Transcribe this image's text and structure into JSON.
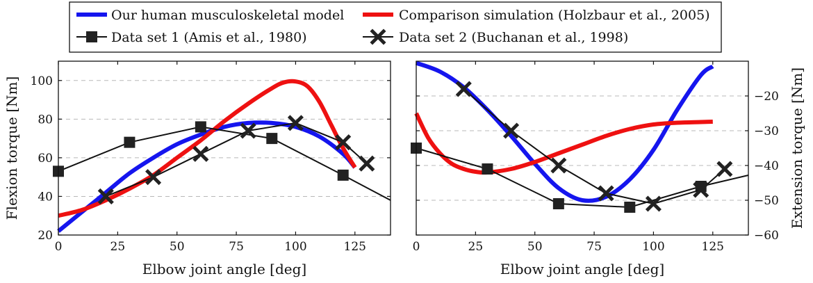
{
  "legend": [
    {
      "key": "model",
      "label": "Our human musculoskeletal model",
      "color": "#1515ee",
      "style": "thick-line"
    },
    {
      "key": "comparison",
      "label": "Comparison simulation (Holzbaur et al., 2005)",
      "color": "#ee1111",
      "style": "thick-line"
    },
    {
      "key": "data1",
      "label": "Data set 1 (Amis et al., 1980)",
      "color": "#111111",
      "style": "square"
    },
    {
      "key": "data2",
      "label": "Data set 2 (Buchanan et al., 1998)",
      "color": "#111111",
      "style": "cross"
    }
  ],
  "chart_data": [
    {
      "type": "line",
      "id": "flexion",
      "xlabel": "Elbow joint angle [deg]",
      "ylabel": "Flexion torque [Nm]",
      "xlim": [
        0,
        140
      ],
      "ylim": [
        20,
        110
      ],
      "xticks": [
        0,
        25,
        50,
        75,
        100,
        125
      ],
      "yticks": [
        20,
        40,
        60,
        80,
        100
      ],
      "grid_y": [
        40,
        60,
        80,
        100
      ],
      "y_axis_side": "left",
      "series": [
        {
          "name": "Our human musculoskeletal model",
          "kind": "curve",
          "x": [
            0,
            10,
            20,
            30,
            40,
            50,
            60,
            70,
            80,
            90,
            100,
            110,
            120,
            125
          ],
          "y": [
            22,
            32,
            42,
            52,
            60,
            67,
            72,
            76,
            78,
            78,
            76,
            71,
            62,
            55
          ]
        },
        {
          "name": "Comparison simulation (Holzbaur et al., 2005)",
          "kind": "curve",
          "x": [
            0,
            10,
            20,
            30,
            40,
            50,
            60,
            70,
            80,
            90,
            95,
            100,
            105,
            110,
            115,
            120,
            125
          ],
          "y": [
            30,
            33,
            38,
            44,
            51,
            60,
            69,
            79,
            88,
            96,
            99,
            99.5,
            97,
            89,
            77,
            65,
            55
          ]
        },
        {
          "name": "Data set 1 (Amis et al., 1980)",
          "kind": "markers-square",
          "x": [
            0,
            30,
            60,
            90,
            120,
            140
          ],
          "y": [
            53,
            68,
            76,
            70,
            51,
            38
          ],
          "marker_count": 5
        },
        {
          "name": "Data set 2 (Buchanan et al., 1998)",
          "kind": "markers-cross",
          "x": [
            20,
            40,
            60,
            80,
            100,
            120,
            130
          ],
          "y": [
            40,
            50,
            62,
            74,
            78,
            68,
            57
          ]
        }
      ]
    },
    {
      "type": "line",
      "id": "extension",
      "xlabel": "Elbow joint angle [deg]",
      "ylabel": "Extension torque [Nm]",
      "xlim": [
        0,
        140
      ],
      "ylim": [
        -60,
        -10
      ],
      "xticks": [
        0,
        25,
        50,
        75,
        100,
        125
      ],
      "yticks": [
        -60,
        -50,
        -40,
        -30,
        -20
      ],
      "grid_y": [
        -50,
        -40,
        -30,
        -20
      ],
      "y_axis_side": "right",
      "series": [
        {
          "name": "Our human musculoskeletal model",
          "kind": "curve",
          "x": [
            0,
            10,
            20,
            30,
            40,
            50,
            60,
            70,
            80,
            90,
            100,
            110,
            120,
            125
          ],
          "y": [
            -10.5,
            -13,
            -17.5,
            -24,
            -31.5,
            -39.5,
            -46.5,
            -50,
            -49,
            -44,
            -35.5,
            -24,
            -14,
            -11.5
          ]
        },
        {
          "name": "Comparison simulation (Holzbaur et al., 2005)",
          "kind": "curve",
          "x": [
            0,
            5,
            10,
            15,
            20,
            25,
            30,
            40,
            50,
            60,
            70,
            80,
            90,
            100,
            110,
            120,
            125
          ],
          "y": [
            -25,
            -32,
            -36.5,
            -39.5,
            -41,
            -41.8,
            -42,
            -41,
            -39,
            -36.5,
            -34,
            -31.5,
            -29.5,
            -28.2,
            -27.7,
            -27.5,
            -27.4
          ]
        },
        {
          "name": "Data set 1 (Amis et al., 1980)",
          "kind": "markers-square",
          "x": [
            0,
            30,
            60,
            90,
            120,
            140
          ],
          "y": [
            -35,
            -41,
            -51,
            -52,
            -46,
            -42.8
          ],
          "marker_count": 5
        },
        {
          "name": "Data set 2 (Buchanan et al., 1998)",
          "kind": "markers-cross",
          "x": [
            20,
            40,
            60,
            80,
            100,
            120,
            130
          ],
          "y": [
            -18,
            -30,
            -40,
            -48,
            -51,
            -47,
            -41
          ]
        }
      ]
    }
  ]
}
